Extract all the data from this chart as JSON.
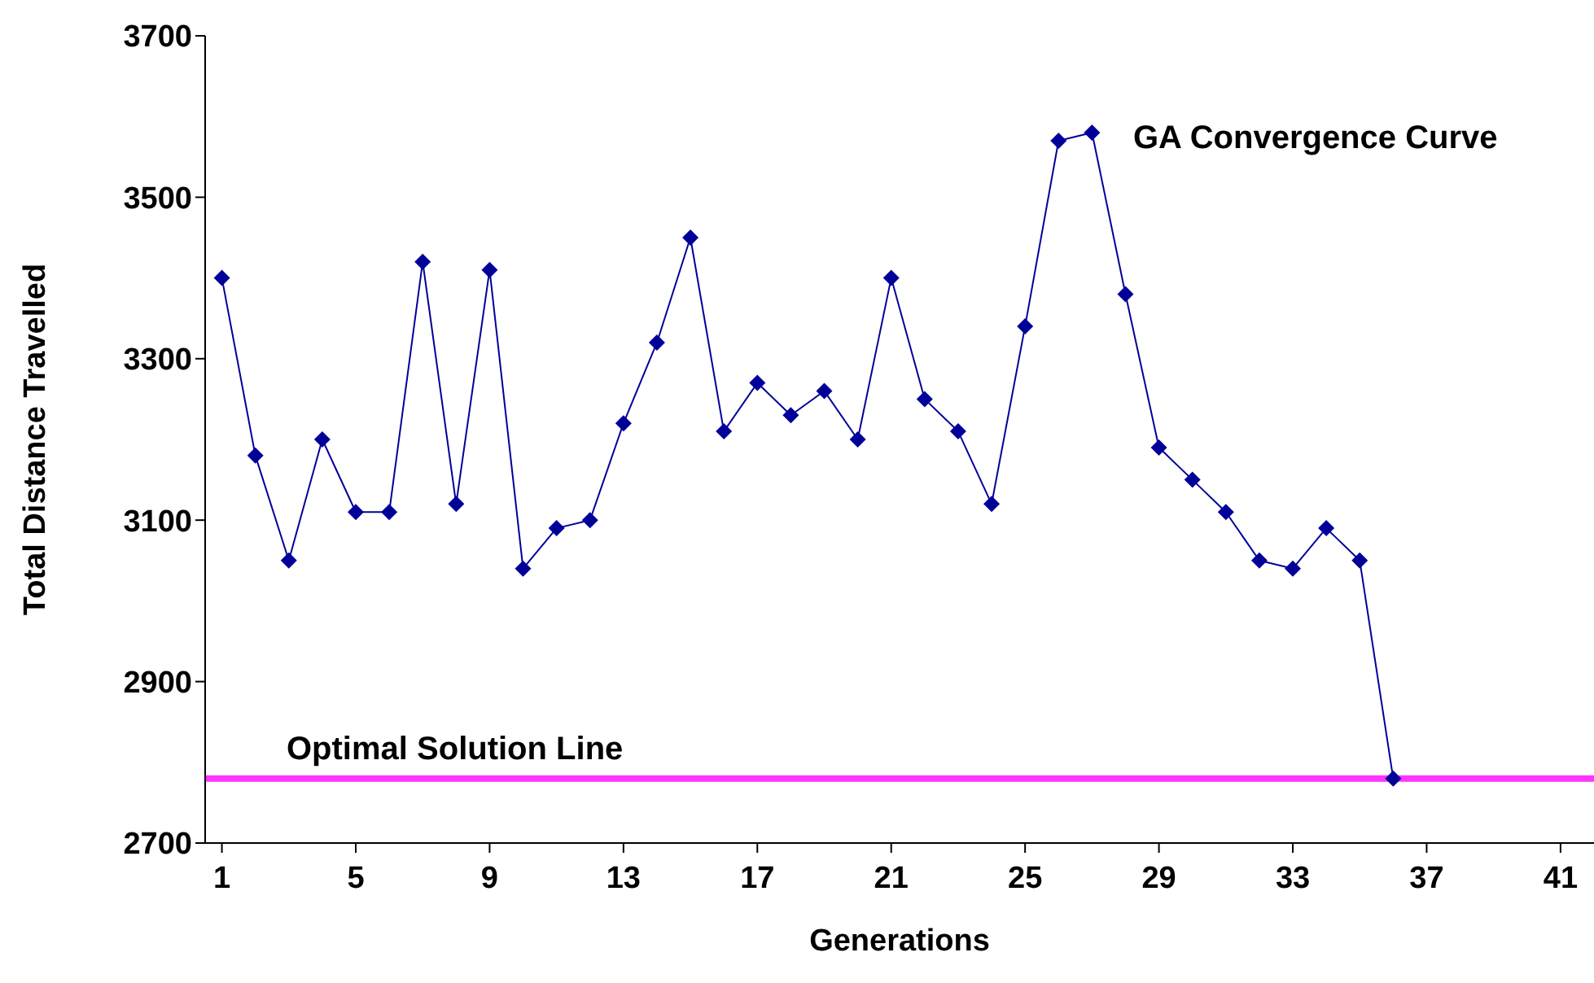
{
  "chart_data": {
    "type": "line",
    "xlabel": "Generations",
    "ylabel": "Total Distance Travelled",
    "x": [
      1,
      2,
      3,
      4,
      5,
      6,
      7,
      8,
      9,
      10,
      11,
      12,
      13,
      14,
      15,
      16,
      17,
      18,
      19,
      20,
      21,
      22,
      23,
      24,
      25,
      26,
      27,
      28,
      29,
      30,
      31,
      32,
      33,
      34,
      35,
      36
    ],
    "series": [
      {
        "name": "GA Convergence Curve",
        "color": "#000099",
        "values": [
          3400,
          3180,
          3050,
          3200,
          3110,
          3110,
          3420,
          3120,
          3410,
          3040,
          3090,
          3100,
          3220,
          3320,
          3450,
          3210,
          3270,
          3230,
          3260,
          3200,
          3400,
          3250,
          3210,
          3120,
          3340,
          3570,
          3580,
          3380,
          3190,
          3150,
          3110,
          3050,
          3040,
          3090,
          3050,
          2780
        ]
      }
    ],
    "xlim": [
      0.5,
      42
    ],
    "xticks": [
      1,
      5,
      9,
      13,
      17,
      21,
      25,
      29,
      33,
      37,
      41
    ],
    "ylim": [
      2700,
      3700
    ],
    "yticks": [
      2700,
      2900,
      3100,
      3300,
      3500,
      3700
    ],
    "ref_lines": [
      {
        "axis": "y",
        "value": 2780,
        "label": "Optimal  Solution Line",
        "color": "#ff33ff",
        "line_style": "solid"
      }
    ],
    "grid": false,
    "legend": false,
    "marker": "diamond",
    "line_style": "solid"
  }
}
